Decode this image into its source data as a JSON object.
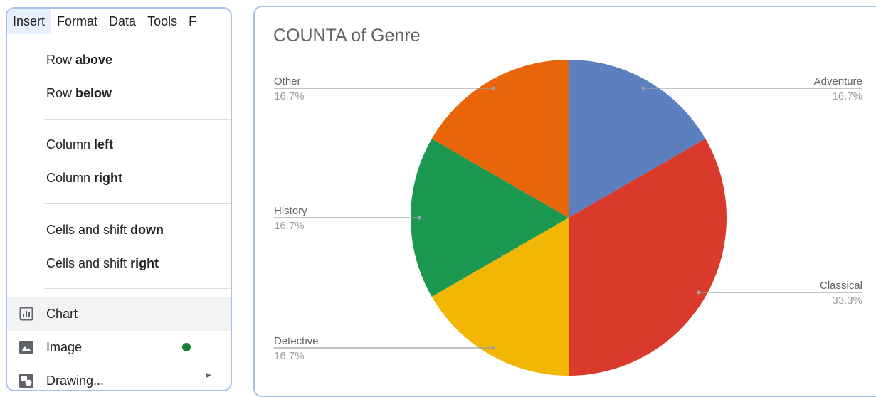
{
  "menubar": {
    "items": [
      "Insert",
      "Format",
      "Data",
      "Tools",
      "F"
    ]
  },
  "insert_menu": {
    "row_above": {
      "prefix": "Row ",
      "bold": "above"
    },
    "row_below": {
      "prefix": "Row ",
      "bold": "below"
    },
    "column_left": {
      "prefix": "Column ",
      "bold": "left"
    },
    "column_right": {
      "prefix": "Column ",
      "bold": "right"
    },
    "cells_down": {
      "prefix": "Cells and shift ",
      "bold": "down"
    },
    "cells_right": {
      "prefix": "Cells and shift ",
      "bold": "right"
    },
    "chart": "Chart",
    "image": "Image",
    "drawing": "Drawing...",
    "icons": {
      "chart": "chart-icon",
      "image": "image-icon",
      "drawing": "drawing-icon"
    },
    "new_indicator_color": "#188038"
  },
  "chart_data": {
    "type": "pie",
    "title": "COUNTA of Genre",
    "slices": [
      {
        "label": "Adventure",
        "value": 1,
        "percent": "16.7%",
        "color": "#5b7fbf"
      },
      {
        "label": "Classical",
        "value": 2,
        "percent": "33.3%",
        "color": "#d93a2b"
      },
      {
        "label": "Detective",
        "value": 1,
        "percent": "16.7%",
        "color": "#f2b705"
      },
      {
        "label": "History",
        "value": 1,
        "percent": "16.7%",
        "color": "#1a9850"
      },
      {
        "label": "Other",
        "value": 1,
        "percent": "16.7%",
        "color": "#e8650a"
      }
    ],
    "legend": "labeled-slices"
  }
}
